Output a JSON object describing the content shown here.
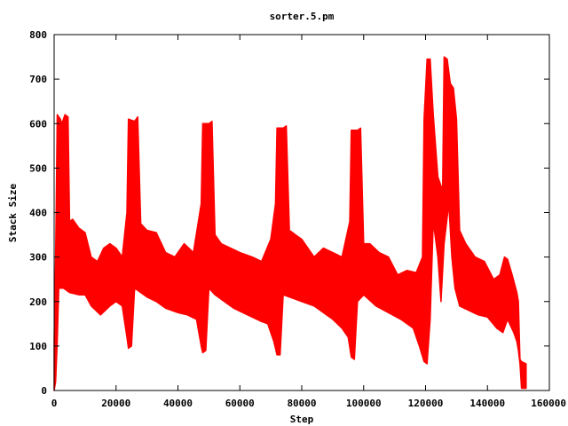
{
  "chart_data": {
    "type": "line",
    "title": "sorter.5.pm",
    "xlabel": "Step",
    "ylabel": "Stack Size",
    "xlim": [
      0,
      160000
    ],
    "ylim": [
      0,
      800
    ],
    "xticks": [
      0,
      20000,
      40000,
      60000,
      80000,
      100000,
      120000,
      140000,
      160000
    ],
    "yticks": [
      0,
      100,
      200,
      300,
      400,
      500,
      600,
      700,
      800
    ],
    "grid": false,
    "legend": "none",
    "colors": {
      "series": "#ff0000",
      "axes": "#000000"
    },
    "series": [
      {
        "envelope_low": [
          [
            0,
            0
          ],
          [
            500,
            20
          ],
          [
            1000,
            110
          ],
          [
            1500,
            230
          ],
          [
            3000,
            230
          ],
          [
            5000,
            220
          ],
          [
            8000,
            215
          ],
          [
            10000,
            215
          ],
          [
            12000,
            190
          ],
          [
            15000,
            170
          ],
          [
            18000,
            190
          ],
          [
            20000,
            200
          ],
          [
            22000,
            190
          ],
          [
            23500,
            120
          ],
          [
            24000,
            95
          ],
          [
            25000,
            100
          ],
          [
            26000,
            230
          ],
          [
            28000,
            220
          ],
          [
            30000,
            210
          ],
          [
            33000,
            200
          ],
          [
            36000,
            185
          ],
          [
            38000,
            180
          ],
          [
            40000,
            175
          ],
          [
            43000,
            170
          ],
          [
            46000,
            160
          ],
          [
            47500,
            100
          ],
          [
            48000,
            85
          ],
          [
            49000,
            90
          ],
          [
            50000,
            230
          ],
          [
            52000,
            215
          ],
          [
            55000,
            200
          ],
          [
            58000,
            185
          ],
          [
            61000,
            175
          ],
          [
            64000,
            165
          ],
          [
            67000,
            155
          ],
          [
            69000,
            150
          ],
          [
            71000,
            110
          ],
          [
            72000,
            80
          ],
          [
            73000,
            80
          ],
          [
            74000,
            215
          ],
          [
            76000,
            210
          ],
          [
            80000,
            200
          ],
          [
            84000,
            190
          ],
          [
            87000,
            175
          ],
          [
            90000,
            160
          ],
          [
            93000,
            140
          ],
          [
            95000,
            120
          ],
          [
            96000,
            75
          ],
          [
            97000,
            70
          ],
          [
            98000,
            200
          ],
          [
            100000,
            215
          ],
          [
            104000,
            190
          ],
          [
            108000,
            175
          ],
          [
            112000,
            160
          ],
          [
            116000,
            140
          ],
          [
            118000,
            100
          ],
          [
            119500,
            65
          ],
          [
            120500,
            60
          ],
          [
            121500,
            160
          ],
          [
            122500,
            380
          ],
          [
            124000,
            300
          ],
          [
            125000,
            200
          ],
          [
            126000,
            330
          ],
          [
            127500,
            420
          ],
          [
            128500,
            300
          ],
          [
            129500,
            230
          ],
          [
            131000,
            190
          ],
          [
            134000,
            180
          ],
          [
            137000,
            170
          ],
          [
            140000,
            165
          ],
          [
            143000,
            140
          ],
          [
            145000,
            130
          ],
          [
            146500,
            160
          ],
          [
            148500,
            130
          ],
          [
            149500,
            110
          ],
          [
            150000,
            90
          ],
          [
            150500,
            60
          ],
          [
            151000,
            5
          ],
          [
            152500,
            5
          ]
        ],
        "envelope_high": [
          [
            0,
            110
          ],
          [
            500,
            310
          ],
          [
            1000,
            620
          ],
          [
            2000,
            610
          ],
          [
            2500,
            600
          ],
          [
            3500,
            620
          ],
          [
            4500,
            615
          ],
          [
            5000,
            380
          ],
          [
            6000,
            385
          ],
          [
            8000,
            365
          ],
          [
            10000,
            355
          ],
          [
            12000,
            300
          ],
          [
            14000,
            290
          ],
          [
            16000,
            320
          ],
          [
            18000,
            330
          ],
          [
            20000,
            320
          ],
          [
            22000,
            300
          ],
          [
            23500,
            400
          ],
          [
            24000,
            610
          ],
          [
            26000,
            605
          ],
          [
            27000,
            615
          ],
          [
            28000,
            375
          ],
          [
            30000,
            360
          ],
          [
            33000,
            355
          ],
          [
            36000,
            310
          ],
          [
            39000,
            300
          ],
          [
            42000,
            330
          ],
          [
            45000,
            310
          ],
          [
            47500,
            420
          ],
          [
            48000,
            600
          ],
          [
            50000,
            600
          ],
          [
            51000,
            605
          ],
          [
            52000,
            350
          ],
          [
            54000,
            330
          ],
          [
            57000,
            320
          ],
          [
            60000,
            310
          ],
          [
            64000,
            300
          ],
          [
            67000,
            290
          ],
          [
            70000,
            340
          ],
          [
            71500,
            420
          ],
          [
            72000,
            590
          ],
          [
            74000,
            590
          ],
          [
            75000,
            595
          ],
          [
            76000,
            360
          ],
          [
            78000,
            350
          ],
          [
            80000,
            340
          ],
          [
            84000,
            300
          ],
          [
            87000,
            320
          ],
          [
            90000,
            310
          ],
          [
            93000,
            300
          ],
          [
            95500,
            380
          ],
          [
            96000,
            585
          ],
          [
            98000,
            585
          ],
          [
            99000,
            590
          ],
          [
            100000,
            330
          ],
          [
            102000,
            330
          ],
          [
            105000,
            310
          ],
          [
            108000,
            300
          ],
          [
            111000,
            260
          ],
          [
            114000,
            270
          ],
          [
            117000,
            265
          ],
          [
            119000,
            300
          ],
          [
            119500,
            610
          ],
          [
            120500,
            745
          ],
          [
            121500,
            745
          ],
          [
            122500,
            620
          ],
          [
            124000,
            480
          ],
          [
            125500,
            450
          ],
          [
            126000,
            750
          ],
          [
            127000,
            745
          ],
          [
            128000,
            690
          ],
          [
            129000,
            680
          ],
          [
            130000,
            610
          ],
          [
            131000,
            360
          ],
          [
            133000,
            330
          ],
          [
            136000,
            300
          ],
          [
            139000,
            290
          ],
          [
            142000,
            250
          ],
          [
            144000,
            260
          ],
          [
            145500,
            300
          ],
          [
            146500,
            295
          ],
          [
            148000,
            260
          ],
          [
            149500,
            220
          ],
          [
            150000,
            200
          ],
          [
            150500,
            70
          ],
          [
            151000,
            65
          ],
          [
            152500,
            60
          ]
        ]
      }
    ]
  }
}
